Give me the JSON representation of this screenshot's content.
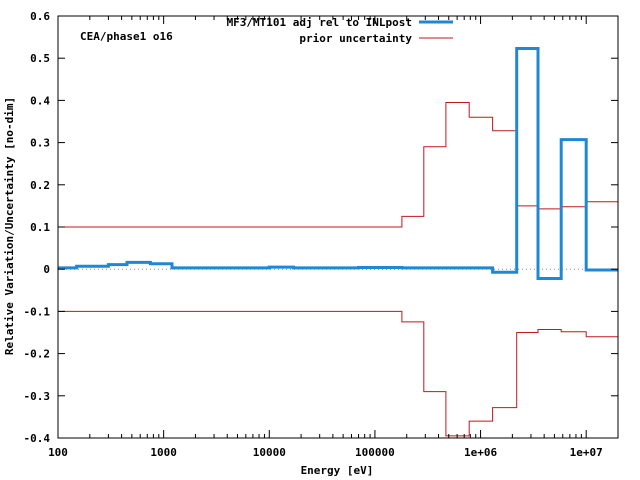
{
  "chart_data": {
    "type": "line",
    "title": "",
    "xlabel": "Energy [eV]",
    "ylabel": "Relative Variation/Uncertainty [no-dim]",
    "x_scale": "log",
    "xlim": [
      100,
      20000000
    ],
    "ylim": [
      -0.4,
      0.6
    ],
    "grid": false,
    "legend_position": "top-right",
    "annotation": "CEA/phase1 o16",
    "x_tick_labels": [
      "100",
      "1000",
      "10000",
      "100000",
      "1e+06",
      "1e+07"
    ],
    "x_tick_values": [
      100,
      1000,
      10000,
      100000,
      1000000,
      10000000
    ],
    "y_tick_labels": [
      "-0.4",
      "-0.3",
      "-0.2",
      "-0.1",
      "0",
      "0.1",
      "0.2",
      "0.3",
      "0.4",
      "0.5",
      "0.6"
    ],
    "y_tick_values": [
      -0.4,
      -0.3,
      -0.2,
      -0.1,
      0,
      0.1,
      0.2,
      0.3,
      0.4,
      0.5,
      0.6
    ],
    "bin_edges": [
      100,
      150,
      300,
      450,
      750,
      1200,
      10000,
      17000,
      70000,
      180000,
      290000,
      470000,
      780000,
      1300000,
      2200000,
      3500000,
      5800000,
      10000000,
      20000000
    ],
    "series": [
      {
        "name": "MF3/MT101 adj rel to INLpost",
        "color": "#1f88d6",
        "values": [
          0.003,
          0.007,
          0.011,
          0.016,
          0.013,
          0.003,
          0.005,
          0.003,
          0.004,
          0.003,
          0.003,
          0.003,
          0.003,
          -0.007,
          0.523,
          -0.022,
          0.307,
          -0.002
        ]
      },
      {
        "name": "prior uncertainty",
        "color": "#c0181f",
        "values": [
          0.1,
          0.1,
          0.1,
          0.1,
          0.1,
          0.1,
          0.1,
          0.1,
          0.1,
          0.125,
          0.29,
          0.395,
          0.36,
          0.328,
          0.15,
          0.143,
          0.148,
          0.16
        ],
        "mirrored": true
      }
    ]
  }
}
